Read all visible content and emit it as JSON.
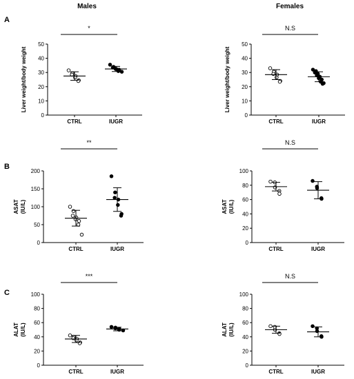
{
  "columns": [
    "Males",
    "Females"
  ],
  "chart_data": [
    {
      "type": "scatter",
      "panel": "A",
      "sex": "Males",
      "categories": [
        "CTRL",
        "IUGR"
      ],
      "ylabel": [
        "Liver weight/body weight"
      ],
      "ylim": [
        0,
        50
      ],
      "yticks": [
        0,
        10,
        20,
        30,
        40,
        50
      ],
      "significance": "*",
      "series": [
        {
          "group": "CTRL",
          "marker": "open",
          "mean": 27.5,
          "sd": 3.0,
          "values": [
            31.5,
            29.5,
            28.5,
            27.5,
            26.5,
            24.5,
            24.0
          ]
        },
        {
          "group": "IUGR",
          "marker": "filled",
          "mean": 32.5,
          "sd": 1.8,
          "values": [
            35.5,
            34.0,
            33.5,
            32.5,
            32.5,
            32.0,
            31.0,
            30.5
          ]
        }
      ]
    },
    {
      "type": "scatter",
      "panel": "A",
      "sex": "Females",
      "categories": [
        "CTRL",
        "IUGR"
      ],
      "ylabel": [
        "Liver weight/body weight"
      ],
      "ylim": [
        0,
        50
      ],
      "yticks": [
        0,
        10,
        20,
        30,
        40,
        50
      ],
      "significance": "N.S",
      "series": [
        {
          "group": "CTRL",
          "marker": "open",
          "mean": 28.5,
          "sd": 3.5,
          "values": [
            33.0,
            30.5,
            29.0,
            28.5,
            26.5,
            24.0,
            23.5
          ]
        },
        {
          "group": "IUGR",
          "marker": "filled",
          "mean": 27.0,
          "sd": 3.5,
          "values": [
            32.0,
            31.0,
            30.0,
            29.0,
            28.0,
            27.0,
            26.0,
            25.0,
            23.5,
            22.5,
            22.0
          ]
        }
      ]
    },
    {
      "type": "scatter",
      "panel": "B",
      "sex": "Males",
      "categories": [
        "CTRL",
        "IUGR"
      ],
      "ylabel": [
        "ASAT",
        "(IU/L)"
      ],
      "ylim": [
        0,
        200
      ],
      "yticks": [
        0,
        50,
        100,
        150,
        200
      ],
      "significance": "**",
      "series": [
        {
          "group": "CTRL",
          "marker": "open",
          "mean": 68,
          "sd": 22,
          "values": [
            100,
            88,
            75,
            70,
            65,
            60,
            50,
            22
          ]
        },
        {
          "group": "IUGR",
          "marker": "filled",
          "mean": 120,
          "sd": 33,
          "values": [
            185,
            140,
            125,
            120,
            105,
            80,
            75
          ]
        }
      ]
    },
    {
      "type": "scatter",
      "panel": "B",
      "sex": "Females",
      "categories": [
        "CTRL",
        "IUGR"
      ],
      "ylabel": [
        "ASAT",
        "(IU/L)"
      ],
      "ylim": [
        0,
        100
      ],
      "yticks": [
        0,
        20,
        40,
        60,
        80,
        100
      ],
      "significance": "N.S",
      "series": [
        {
          "group": "CTRL",
          "marker": "open",
          "mean": 78,
          "sd": 6,
          "values": [
            85,
            84,
            77,
            72,
            68
          ]
        },
        {
          "group": "IUGR",
          "marker": "filled",
          "mean": 73,
          "sd": 12,
          "values": [
            86,
            78,
            76,
            62,
            61
          ]
        }
      ]
    },
    {
      "type": "scatter",
      "panel": "C",
      "sex": "Males",
      "categories": [
        "CTRL",
        "IUGR"
      ],
      "ylabel": [
        "ALAT",
        "(IU/L)"
      ],
      "ylim": [
        0,
        100
      ],
      "yticks": [
        0,
        20,
        40,
        60,
        80,
        100
      ],
      "significance": "***",
      "series": [
        {
          "group": "CTRL",
          "marker": "open",
          "mean": 37,
          "sd": 5,
          "values": [
            42,
            40,
            38,
            37,
            35,
            32,
            31
          ]
        },
        {
          "group": "IUGR",
          "marker": "filled",
          "mean": 51,
          "sd": 2.5,
          "values": [
            54,
            53,
            52,
            51,
            50,
            49
          ]
        }
      ]
    },
    {
      "type": "scatter",
      "panel": "C",
      "sex": "Females",
      "categories": [
        "CTRL",
        "IUGR"
      ],
      "ylabel": [
        "ALAT",
        "(IU/L)"
      ],
      "ylim": [
        0,
        100
      ],
      "yticks": [
        0,
        20,
        40,
        60,
        80,
        100
      ],
      "significance": "N.S",
      "series": [
        {
          "group": "CTRL",
          "marker": "open",
          "mean": 50,
          "sd": 5,
          "values": [
            55,
            54,
            50,
            45,
            44
          ]
        },
        {
          "group": "IUGR",
          "marker": "filled",
          "mean": 47,
          "sd": 7,
          "values": [
            55,
            52,
            48,
            41,
            40
          ]
        }
      ]
    }
  ]
}
